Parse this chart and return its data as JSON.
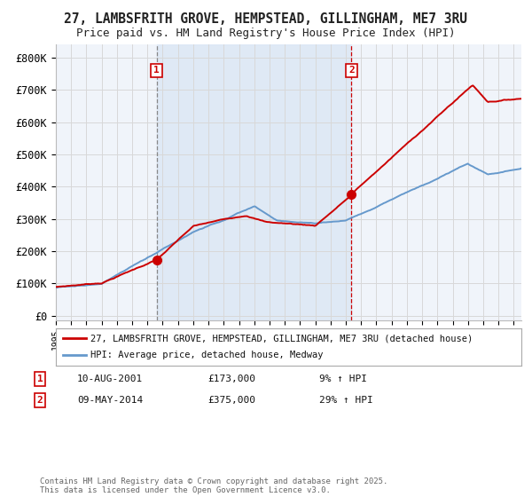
{
  "title_line1": "27, LAMBSFRITH GROVE, HEMPSTEAD, GILLINGHAM, ME7 3RU",
  "title_line2": "Price paid vs. HM Land Registry's House Price Index (HPI)",
  "bg_color": "#ffffff",
  "plot_bg_color": "#f0f4fa",
  "grid_color": "#d8d8d8",
  "red_color": "#cc0000",
  "blue_color": "#6699cc",
  "shade_color": "#dce8f5",
  "purchase1_year": 2001.6,
  "purchase1_price": 173000,
  "purchase1_date": "10-AUG-2001",
  "purchase1_pct": "9%",
  "purchase2_year": 2014.37,
  "purchase2_price": 375000,
  "purchase2_date": "09-MAY-2014",
  "purchase2_pct": "29%",
  "legend_label1": "27, LAMBSFRITH GROVE, HEMPSTEAD, GILLINGHAM, ME7 3RU (detached house)",
  "legend_label2": "HPI: Average price, detached house, Medway",
  "footer": "Contains HM Land Registry data © Crown copyright and database right 2025.\nThis data is licensed under the Open Government Licence v3.0.",
  "yticks": [
    0,
    100000,
    200000,
    300000,
    400000,
    500000,
    600000,
    700000,
    800000
  ],
  "ytick_labels": [
    "£0",
    "£100K",
    "£200K",
    "£300K",
    "£400K",
    "£500K",
    "£600K",
    "£700K",
    "£800K"
  ],
  "ylim": [
    -15000,
    840000
  ],
  "xlim_start": 1995,
  "xlim_end": 2025.5
}
